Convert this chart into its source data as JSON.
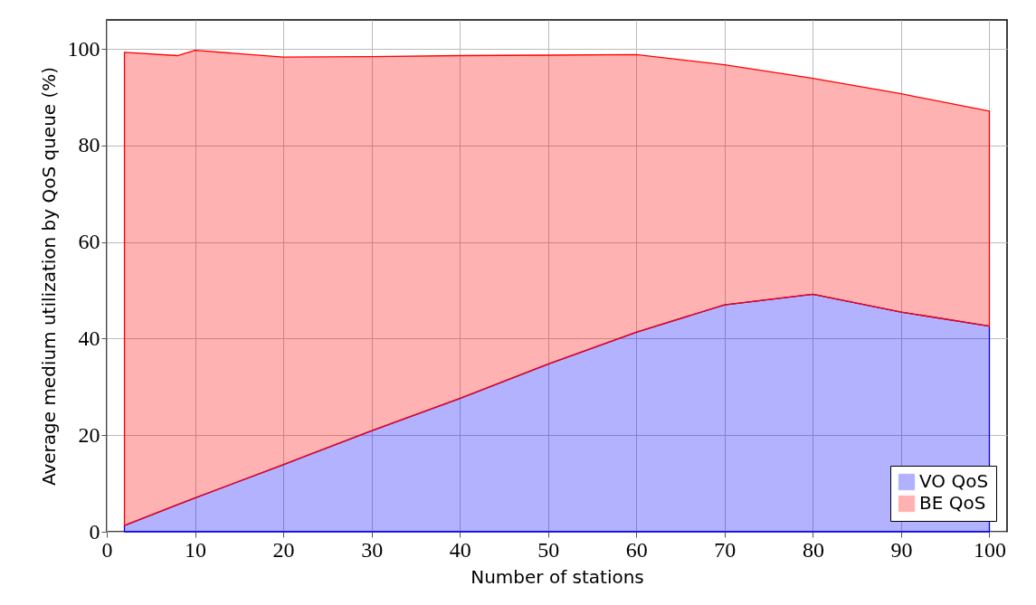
{
  "chart_data": {
    "type": "area",
    "stacked": true,
    "xlabel": "Number of stations",
    "ylabel": "Average medium utilization by QoS queue (%)",
    "x": [
      2,
      8,
      10,
      20,
      30,
      40,
      50,
      60,
      70,
      80,
      90,
      100
    ],
    "series": [
      {
        "name": "VO QoS",
        "color": "#0000ff",
        "values": [
          1.3,
          5.6,
          7.0,
          13.9,
          20.9,
          27.6,
          34.7,
          41.3,
          47.0,
          49.2,
          45.5,
          42.6
        ]
      },
      {
        "name": "BE QoS",
        "color": "#ff0000",
        "values": [
          98.0,
          93.0,
          92.7,
          84.4,
          77.5,
          71.0,
          64.0,
          57.5,
          49.7,
          44.7,
          45.2,
          44.5
        ]
      }
    ],
    "xlim": [
      0,
      102
    ],
    "xticks": [
      0,
      10,
      20,
      30,
      40,
      50,
      60,
      70,
      80,
      90,
      100
    ],
    "ylim": [
      0,
      106
    ],
    "yticks": [
      0,
      20,
      40,
      60,
      80,
      100
    ],
    "grid": true,
    "legend": "bottom right"
  }
}
